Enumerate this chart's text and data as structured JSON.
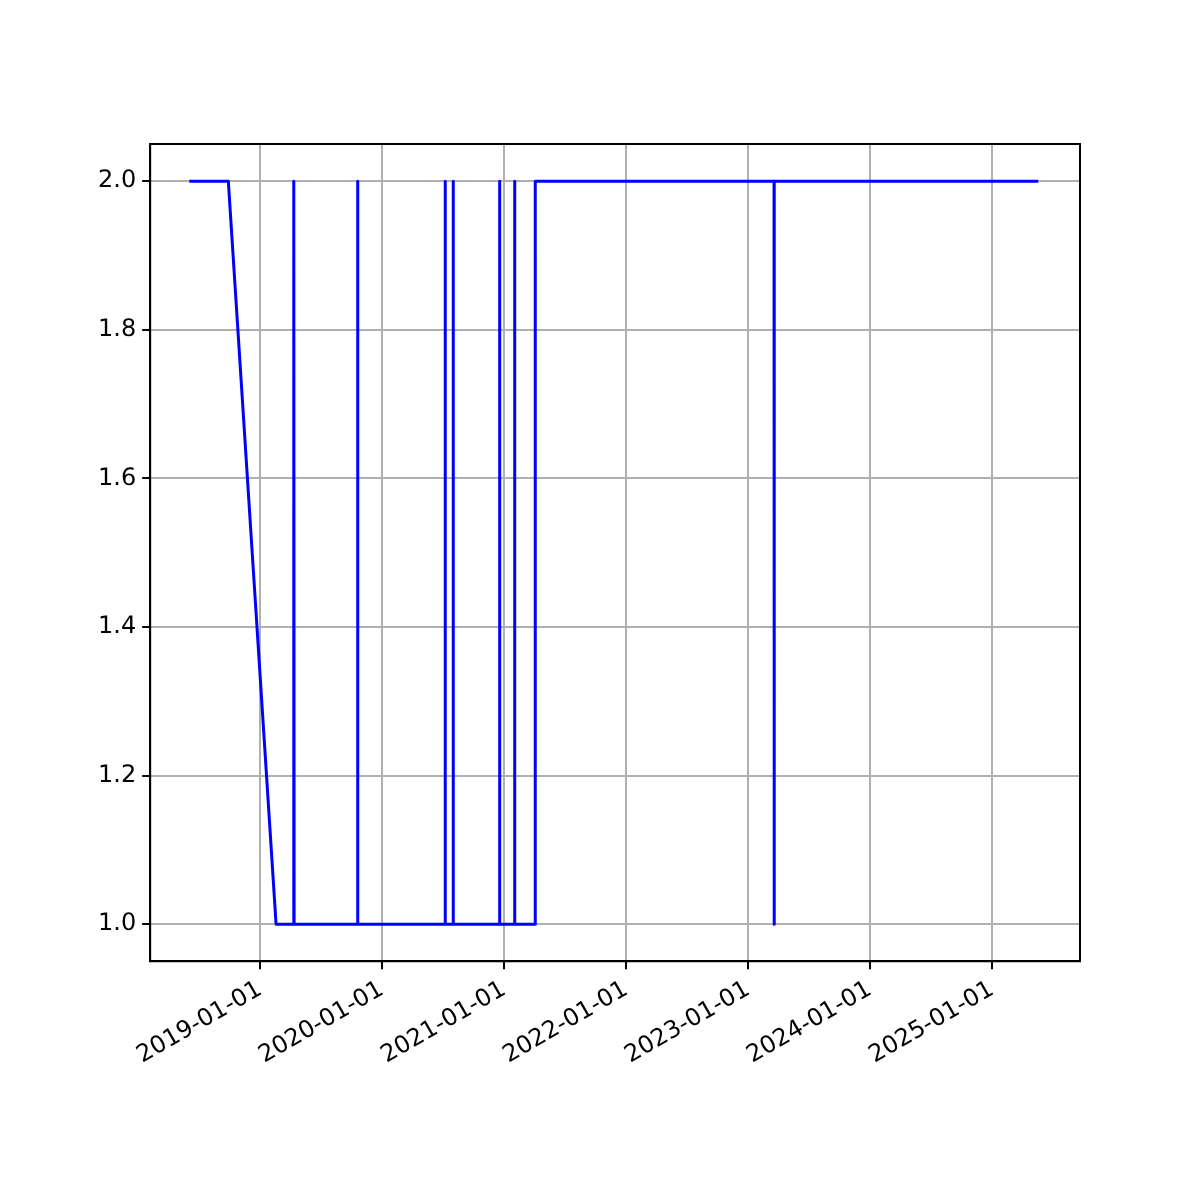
{
  "chart_data": {
    "type": "line",
    "x": [
      "2018-06-03",
      "2018-09-28",
      "2019-02-18",
      "2019-04-12",
      "2019-04-12",
      "2019-04-13",
      "2019-10-20",
      "2019-10-20",
      "2019-10-21",
      "2020-07-08",
      "2020-07-08",
      "2020-07-09",
      "2020-08-01",
      "2020-08-01",
      "2020-08-02",
      "2020-12-18",
      "2020-12-18",
      "2020-12-19",
      "2021-02-01",
      "2021-02-01",
      "2021-02-02",
      "2021-04-04",
      "2021-04-04",
      "2023-03-20",
      "2023-03-20",
      "2023-03-21",
      "2025-05-19"
    ],
    "series": [
      {
        "color": "#0000ff",
        "values": [
          2,
          2,
          1,
          1,
          2,
          1,
          1,
          2,
          1,
          1,
          2,
          1,
          1,
          2,
          1,
          1,
          2,
          1,
          1,
          2,
          1,
          1,
          2,
          2,
          1,
          2,
          2
        ]
      }
    ],
    "xlim": [
      "2018-02-06",
      "2025-09-21"
    ],
    "xticks": [
      "2019-01-01",
      "2020-01-01",
      "2021-01-01",
      "2022-01-01",
      "2023-01-01",
      "2024-01-01",
      "2025-01-01"
    ],
    "ylim": [
      0.95,
      2.05
    ],
    "yticks": [
      {
        "value": 1,
        "label": "1.0"
      },
      {
        "value": 1.2,
        "label": "1.2"
      },
      {
        "value": 1.4,
        "label": "1.4"
      },
      {
        "value": 1.6,
        "label": "1.6"
      },
      {
        "value": 1.8,
        "label": "1.8"
      },
      {
        "value": 2,
        "label": "2.0"
      }
    ],
    "grid": true,
    "marker": "none",
    "line_style": "solid"
  }
}
